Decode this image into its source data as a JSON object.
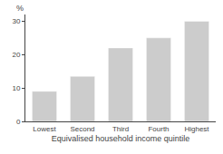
{
  "chart_data": {
    "type": "bar",
    "categories": [
      "Lowest",
      "Second",
      "Third",
      "Fourth",
      "Highest"
    ],
    "values": [
      9.0,
      13.5,
      22.0,
      25.0,
      30.0
    ],
    "color": "#cccccc",
    "xlabel": "Equivalised household income quintile",
    "ylabel": "%",
    "ylim": [
      0,
      32
    ],
    "yticks": [
      0,
      10,
      20,
      30
    ],
    "grid": false
  }
}
